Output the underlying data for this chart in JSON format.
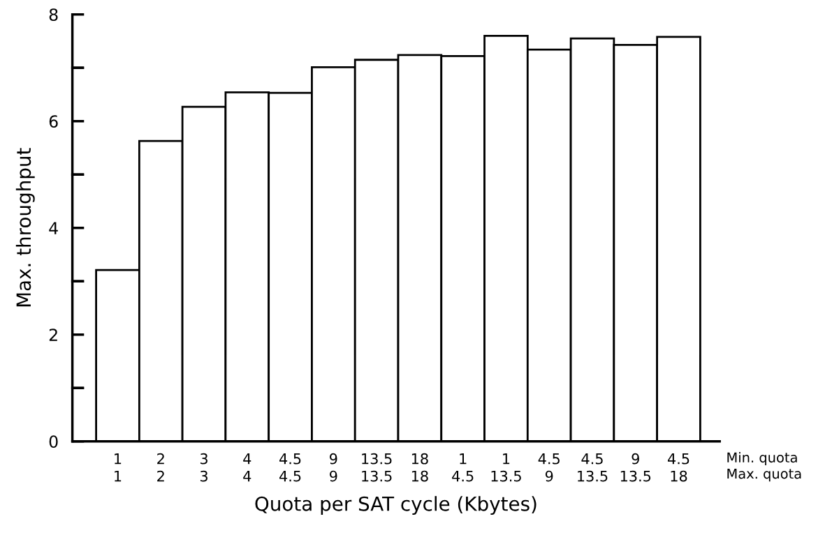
{
  "chart_data": {
    "type": "bar",
    "xlabel": "Quota per SAT cycle (Kbytes)",
    "ylabel": "Max. throughput",
    "categories": [
      "1\n1",
      "2\n2",
      "3\n3",
      "4\n4",
      "4.5\n4.5",
      "9\n9",
      "13.5\n13.5",
      "18\n18",
      "1\n4.5",
      "1\n13.5",
      "4.5\n9",
      "4.5\n13.5",
      "9\n13.5",
      "4.5\n18"
    ],
    "values": [
      3.21,
      5.63,
      6.27,
      6.54,
      6.53,
      7.01,
      7.15,
      7.24,
      7.22,
      7.6,
      7.34,
      7.55,
      7.43,
      7.58
    ],
    "color": "#ffffff",
    "ylim": [
      0,
      8
    ],
    "yticks": [
      0,
      {
        "value": 1,
        "label": null
      },
      2,
      {
        "value": 3,
        "label": null
      },
      4,
      {
        "value": 5,
        "label": null
      },
      6,
      {
        "value": 7,
        "label": null
      },
      8
    ],
    "grid": false,
    "annotations": [
      "Min. quota\nMax. quota"
    ]
  }
}
